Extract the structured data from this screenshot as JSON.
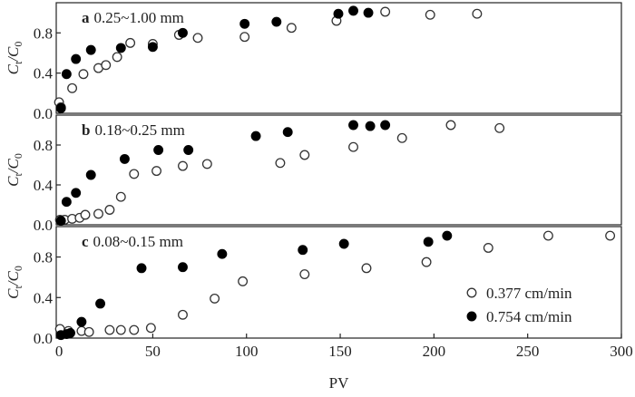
{
  "chart_data": [
    {
      "type": "scatter",
      "label": "a",
      "title": "0.25~1.00 mm",
      "y_label": [
        "C",
        "t",
        "/C",
        "0"
      ],
      "xlim": [
        -1.5,
        300
      ],
      "ylim": [
        0,
        1.1
      ],
      "yticks": [
        {
          "value": 0,
          "label": "0.0"
        },
        0.4,
        0.8
      ],
      "series": [
        {
          "marker": "open",
          "color": "#333333",
          "x": [
            0,
            1,
            7,
            13,
            21,
            25,
            31,
            38,
            50,
            64,
            74,
            99,
            124,
            148,
            174,
            198,
            223
          ],
          "values": [
            0.11,
            0.06,
            0.25,
            0.39,
            0.45,
            0.48,
            0.56,
            0.7,
            0.69,
            0.78,
            0.75,
            0.76,
            0.85,
            0.92,
            1.01,
            0.98,
            0.99
          ]
        },
        {
          "marker": "filled",
          "color": "#000000",
          "x": [
            1,
            4,
            9,
            17,
            33,
            50,
            66,
            99,
            116,
            149,
            157,
            165
          ],
          "values": [
            0.05,
            0.39,
            0.54,
            0.63,
            0.65,
            0.66,
            0.8,
            0.89,
            0.91,
            0.99,
            1.02,
            1.0
          ]
        }
      ]
    },
    {
      "type": "scatter",
      "label": "b",
      "title": "0.18~0.25 mm",
      "y_label": [
        "C",
        "t",
        "/C",
        "0"
      ],
      "xlim": [
        -1.5,
        300
      ],
      "ylim": [
        0,
        1.1
      ],
      "yticks": [
        {
          "value": 0,
          "label": "0.0"
        },
        0.4,
        0.8
      ],
      "series": [
        {
          "marker": "open",
          "color": "#333333",
          "x": [
            0.5,
            3,
            7,
            11,
            14,
            21,
            27,
            33,
            40,
            52,
            66,
            79,
            118,
            131,
            157,
            183,
            209,
            235
          ],
          "values": [
            0.05,
            0.05,
            0.06,
            0.07,
            0.1,
            0.11,
            0.15,
            0.28,
            0.51,
            0.54,
            0.59,
            0.61,
            0.62,
            0.7,
            0.78,
            0.87,
            1.0,
            0.97
          ]
        },
        {
          "marker": "filled",
          "color": "#000000",
          "x": [
            1,
            4,
            9,
            17,
            35,
            53,
            69,
            105,
            122,
            157,
            166,
            174
          ],
          "values": [
            0.04,
            0.23,
            0.32,
            0.5,
            0.66,
            0.75,
            0.75,
            0.89,
            0.93,
            1.0,
            0.99,
            1.0
          ]
        }
      ]
    },
    {
      "type": "scatter",
      "label": "c",
      "title": "0.08~0.15 mm",
      "y_label": [
        "C",
        "t",
        "/C",
        "0"
      ],
      "x_label": "PV",
      "xlim": [
        -1.5,
        300
      ],
      "ylim": [
        0,
        1.1
      ],
      "xticks": [
        0,
        50,
        100,
        150,
        200,
        250,
        300
      ],
      "yticks": [
        {
          "value": 0,
          "label": "0.0"
        },
        0.4,
        0.8
      ],
      "legend": "lower right",
      "series": [
        {
          "name": "0.377 cm/min",
          "marker": "open",
          "color": "#333333",
          "x": [
            0.5,
            5,
            12,
            16,
            27,
            33,
            40,
            49,
            66,
            83,
            98,
            131,
            164,
            196,
            229,
            261,
            294
          ],
          "values": [
            0.09,
            0.07,
            0.07,
            0.06,
            0.08,
            0.08,
            0.08,
            0.1,
            0.23,
            0.39,
            0.56,
            0.63,
            0.69,
            0.75,
            0.89,
            1.01,
            1.01
          ]
        },
        {
          "name": "0.754 cm/min",
          "marker": "filled",
          "color": "#000000",
          "x": [
            1,
            4,
            6,
            12,
            22,
            44,
            66,
            87,
            130,
            152,
            197,
            207
          ],
          "values": [
            0.03,
            0.04,
            0.05,
            0.16,
            0.34,
            0.69,
            0.7,
            0.83,
            0.87,
            0.93,
            0.95,
            1.01
          ]
        }
      ]
    }
  ]
}
